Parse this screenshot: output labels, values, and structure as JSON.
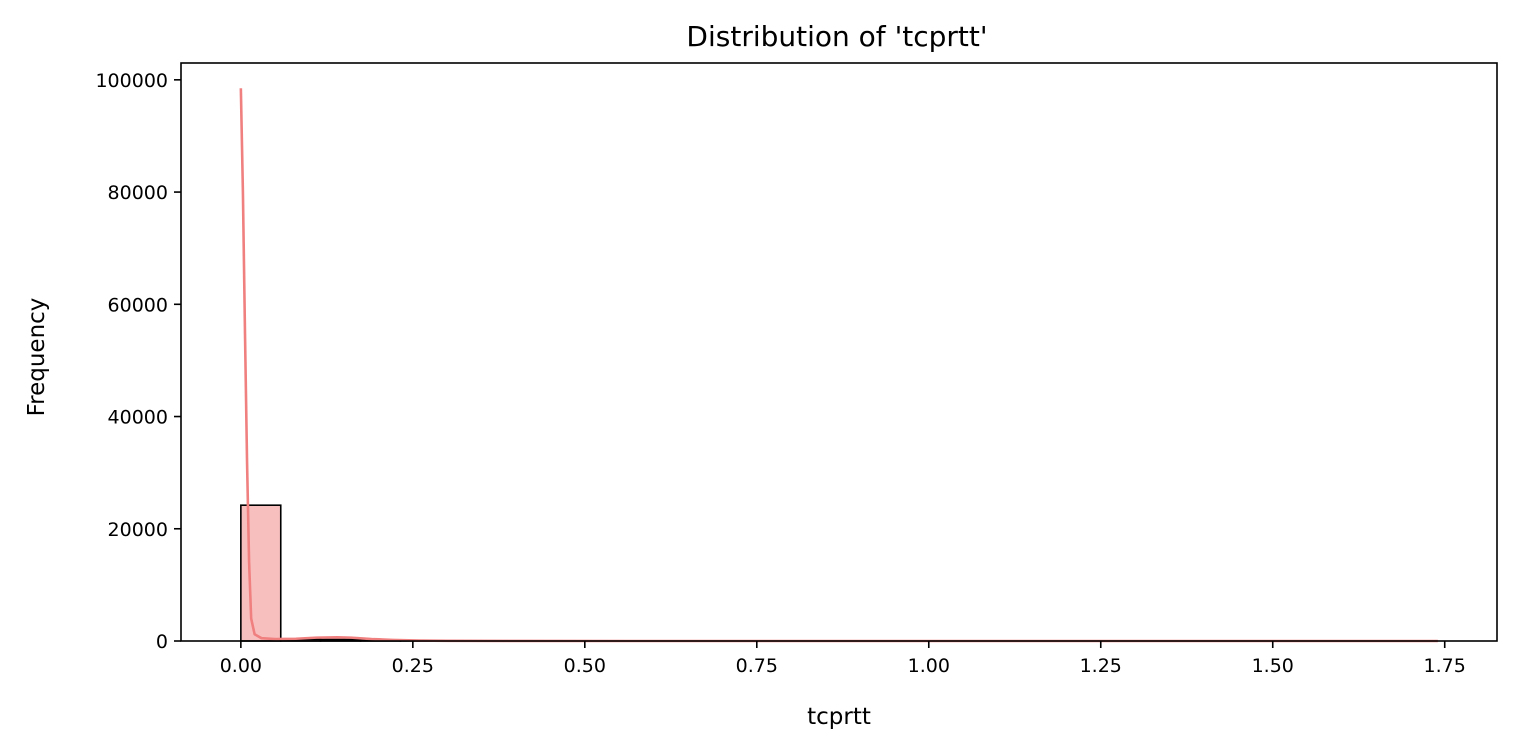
{
  "chart_data": {
    "type": "bar",
    "title": "Distribution of 'tcprtt'",
    "xlabel": "tcprtt",
    "ylabel": "Frequency",
    "xlim": [
      -0.087,
      1.826
    ],
    "ylim": [
      0,
      103000
    ],
    "xticks": [
      0.0,
      0.25,
      0.5,
      0.75,
      1.0,
      1.25,
      1.5,
      1.75
    ],
    "xtick_labels": [
      "0.00",
      "0.25",
      "0.50",
      "0.75",
      "1.00",
      "1.25",
      "1.50",
      "1.75"
    ],
    "yticks": [
      0,
      20000,
      40000,
      60000,
      80000,
      100000
    ],
    "ytick_labels": [
      "0",
      "20000",
      "40000",
      "60000",
      "80000",
      "100000"
    ],
    "grid": false,
    "bins": [
      {
        "x0": 0.0,
        "x1": 0.058,
        "count": 24200
      },
      {
        "x0": 0.058,
        "x1": 0.116,
        "count": 300
      },
      {
        "x0": 0.116,
        "x1": 0.174,
        "count": 280
      },
      {
        "x0": 0.174,
        "x1": 0.232,
        "count": 120
      },
      {
        "x0": 0.232,
        "x1": 0.29,
        "count": 40
      },
      {
        "x0": 0.29,
        "x1": 0.348,
        "count": 10
      }
    ],
    "kde": {
      "x": [
        0.0,
        0.003,
        0.006,
        0.009,
        0.012,
        0.015,
        0.02,
        0.03,
        0.05,
        0.08,
        0.11,
        0.14,
        0.16,
        0.19,
        0.22,
        0.26,
        0.3,
        0.4,
        0.6,
        0.9,
        1.2,
        1.5,
        1.74
      ],
      "y": [
        98500,
        80000,
        55000,
        32000,
        14000,
        4000,
        1200,
        500,
        350,
        400,
        600,
        650,
        600,
        350,
        200,
        80,
        30,
        10,
        0,
        0,
        0,
        0,
        0
      ]
    },
    "colors": {
      "bar_fill": "#f8bfbf",
      "bar_edge": "#000000",
      "kde_line": "#f08080"
    }
  }
}
